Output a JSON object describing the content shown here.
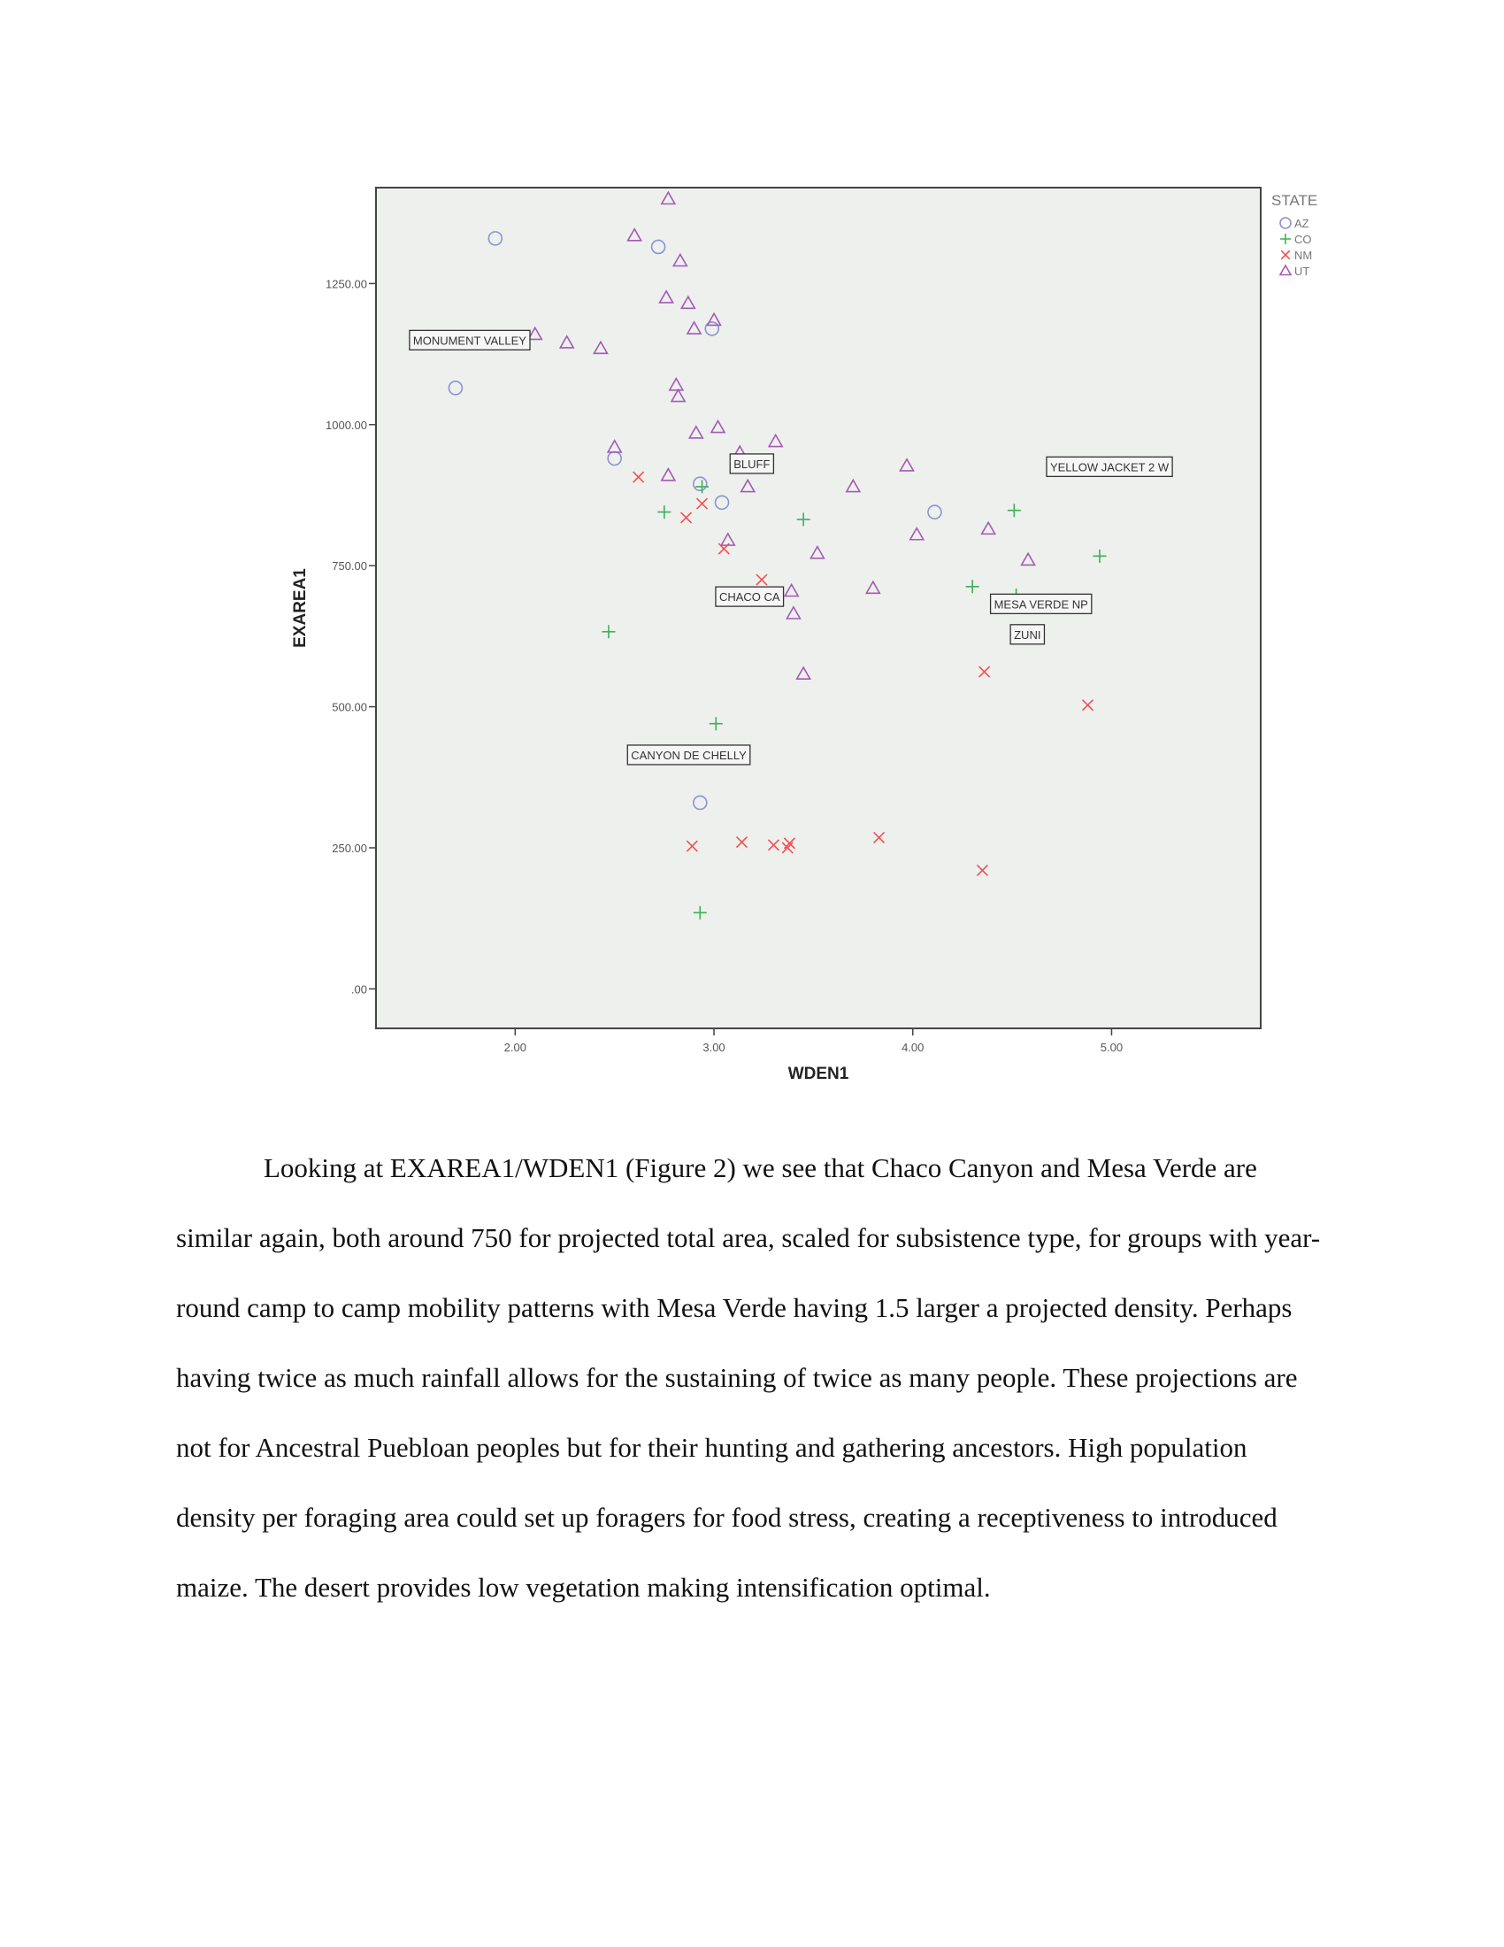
{
  "chart_data": {
    "type": "scatter",
    "xlabel": "WDEN1",
    "ylabel": "EXAREA1",
    "xlim": [
      1.3,
      5.75
    ],
    "ylim": [
      -70,
      1420
    ],
    "x_ticks": [
      2.0,
      3.0,
      4.0,
      5.0
    ],
    "x_tick_labels": [
      "2.00",
      "3.00",
      "4.00",
      "5.00"
    ],
    "y_ticks": [
      0,
      250,
      500,
      750,
      1000,
      1250
    ],
    "y_tick_labels": [
      ".00",
      "250.00",
      "500.00",
      "750.00",
      "1000.00",
      "1250.00"
    ],
    "grid": false,
    "plot_background": "#eef0ee",
    "legend": {
      "title": "STATE",
      "position": "top-right outside"
    },
    "series": [
      {
        "name": "AZ",
        "marker": "circle",
        "color": "#8a93cf",
        "points": [
          [
            1.9,
            1330
          ],
          [
            2.72,
            1315
          ],
          [
            2.99,
            1170
          ],
          [
            1.7,
            1065
          ],
          [
            2.5,
            940
          ],
          [
            2.93,
            895
          ],
          [
            3.04,
            862
          ],
          [
            4.11,
            845
          ],
          [
            2.93,
            330
          ]
        ]
      },
      {
        "name": "CO",
        "marker": "plus",
        "color": "#3fae5a",
        "points": [
          [
            2.94,
            890
          ],
          [
            2.75,
            845
          ],
          [
            3.45,
            832
          ],
          [
            4.51,
            848
          ],
          [
            4.94,
            767
          ],
          [
            4.3,
            713
          ],
          [
            4.52,
            698
          ],
          [
            2.47,
            633
          ],
          [
            3.01,
            470
          ],
          [
            2.93,
            135
          ]
        ]
      },
      {
        "name": "NM",
        "marker": "x",
        "color": "#f05050",
        "points": [
          [
            2.62,
            907
          ],
          [
            2.86,
            835
          ],
          [
            2.94,
            860
          ],
          [
            3.05,
            780
          ],
          [
            3.24,
            725
          ],
          [
            4.46,
            680
          ],
          [
            4.36,
            562
          ],
          [
            4.88,
            503
          ],
          [
            2.89,
            253
          ],
          [
            3.14,
            260
          ],
          [
            3.3,
            255
          ],
          [
            3.37,
            250
          ],
          [
            3.38,
            258
          ],
          [
            3.83,
            268
          ],
          [
            4.35,
            210
          ]
        ]
      },
      {
        "name": "UT",
        "marker": "triangle",
        "color": "#a45ab4",
        "points": [
          [
            2.77,
            1400
          ],
          [
            2.6,
            1335
          ],
          [
            2.83,
            1290
          ],
          [
            2.76,
            1225
          ],
          [
            2.87,
            1215
          ],
          [
            3.0,
            1185
          ],
          [
            2.9,
            1170
          ],
          [
            2.1,
            1160
          ],
          [
            2.26,
            1145
          ],
          [
            2.43,
            1135
          ],
          [
            2.81,
            1070
          ],
          [
            2.82,
            1050
          ],
          [
            3.02,
            995
          ],
          [
            2.91,
            985
          ],
          [
            3.31,
            970
          ],
          [
            2.5,
            960
          ],
          [
            3.13,
            950
          ],
          [
            3.97,
            927
          ],
          [
            2.77,
            910
          ],
          [
            3.17,
            890
          ],
          [
            3.7,
            890
          ],
          [
            4.38,
            815
          ],
          [
            4.02,
            805
          ],
          [
            3.07,
            795
          ],
          [
            3.52,
            772
          ],
          [
            4.58,
            760
          ],
          [
            3.39,
            705
          ],
          [
            3.25,
            695
          ],
          [
            3.8,
            710
          ],
          [
            3.4,
            665
          ],
          [
            3.45,
            558
          ]
        ]
      }
    ],
    "annotations": [
      {
        "text": "MONUMENT VALLEY",
        "x": 1.7,
        "y": 1065
      },
      {
        "text": "BLUFF",
        "x": 3.17,
        "y": 890
      },
      {
        "text": "YELLOW JACKET 2 W",
        "x": 4.94,
        "y": 767
      },
      {
        "text": "CHACO CA",
        "x": 3.24,
        "y": 725
      },
      {
        "text": "MESA VERDE NP",
        "x": 4.52,
        "y": 698
      },
      {
        "text": "ZUNI",
        "x": 4.46,
        "y": 680
      },
      {
        "text": "CANYON DE CHELLY",
        "x": 2.93,
        "y": 330
      }
    ]
  },
  "paragraph": "Looking at EXAREA1/WDEN1 (Figure 2) we see that Chaco Canyon and Mesa Verde are similar again, both around 750 for projected total area, scaled for subsistence type, for groups with year-round camp to camp mobility patterns with Mesa Verde having 1.5 larger a projected density. Perhaps having twice as much rainfall allows for the sustaining of twice as many people. These projections are not for Ancestral Puebloan peoples but for their hunting and gathering ancestors. High population density per foraging area could set up foragers for food stress, creating a receptiveness to introduced maize. The desert provides low vegetation making intensification optimal."
}
